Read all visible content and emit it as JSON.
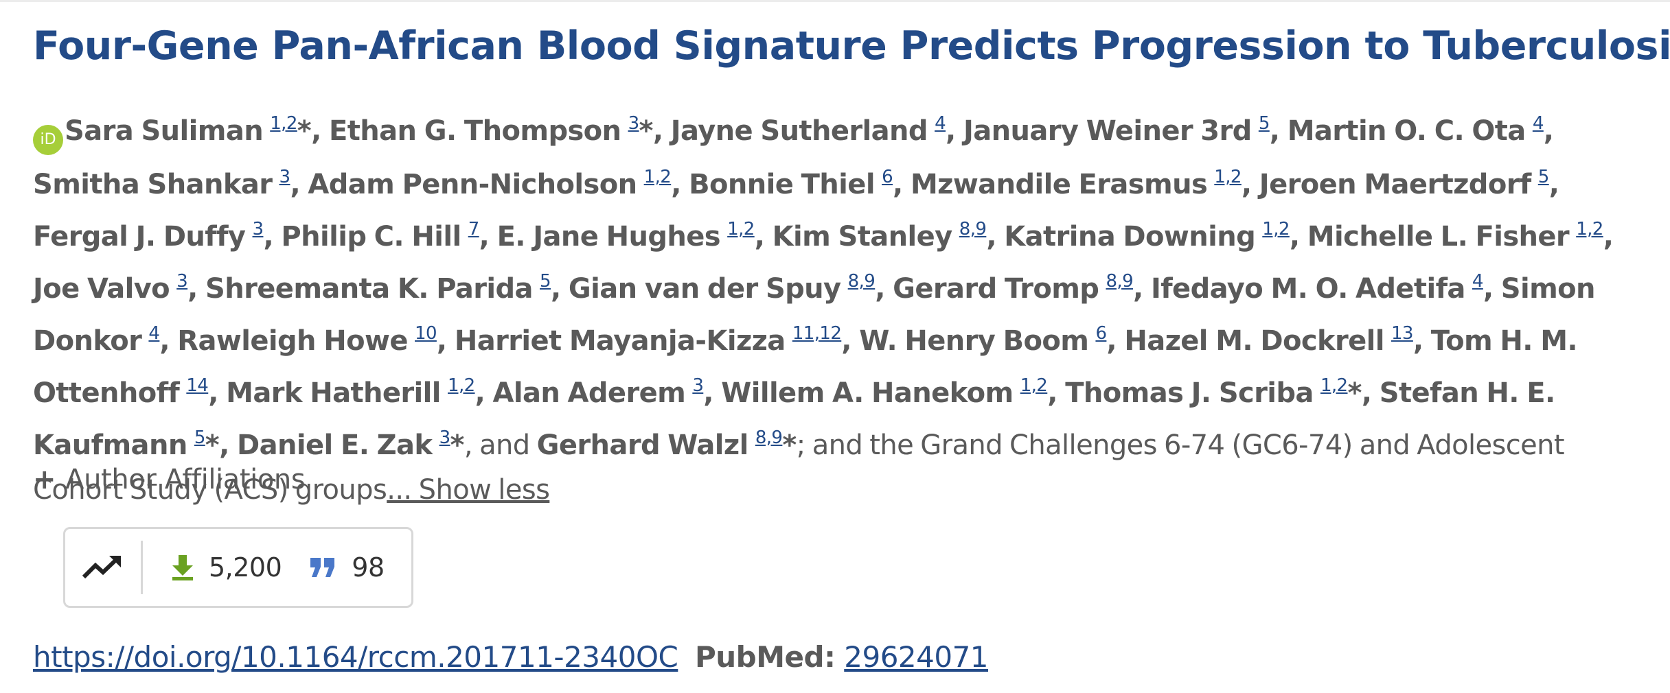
{
  "article": {
    "title": "Four-Gene Pan-African Blood Signature Predicts Progression to Tuberculosis"
  },
  "orcid": {
    "icon": "orcid-icon",
    "label": "iD",
    "color": "#a6ce39"
  },
  "authors": [
    {
      "name": "Sara Suliman",
      "aff": "1,2",
      "corresponding": true
    },
    {
      "name": "Ethan G. Thompson",
      "aff": "3",
      "corresponding": true
    },
    {
      "name": "Jayne Sutherland",
      "aff": "4",
      "corresponding": false
    },
    {
      "name": "January Weiner 3rd",
      "aff": "5",
      "corresponding": false
    },
    {
      "name": "Martin O. C. Ota",
      "aff": "4",
      "corresponding": false
    },
    {
      "name": "Smitha Shankar",
      "aff": "3",
      "corresponding": false
    },
    {
      "name": "Adam Penn-Nicholson",
      "aff": "1,2",
      "corresponding": false
    },
    {
      "name": "Bonnie Thiel",
      "aff": "6",
      "corresponding": false
    },
    {
      "name": "Mzwandile Erasmus",
      "aff": "1,2",
      "corresponding": false
    },
    {
      "name": "Jeroen Maertzdorf",
      "aff": "5",
      "corresponding": false
    },
    {
      "name": "Fergal J. Duffy",
      "aff": "3",
      "corresponding": false
    },
    {
      "name": "Philip C. Hill",
      "aff": "7",
      "corresponding": false
    },
    {
      "name": "E. Jane Hughes",
      "aff": "1,2",
      "corresponding": false
    },
    {
      "name": "Kim Stanley",
      "aff": "8,9",
      "corresponding": false
    },
    {
      "name": "Katrina Downing",
      "aff": "1,2",
      "corresponding": false
    },
    {
      "name": "Michelle L. Fisher",
      "aff": "1,2",
      "corresponding": false
    },
    {
      "name": "Joe Valvo",
      "aff": "3",
      "corresponding": false
    },
    {
      "name": "Shreemanta K. Parida",
      "aff": "5",
      "corresponding": false
    },
    {
      "name": "Gian van der Spuy",
      "aff": "8,9",
      "corresponding": false
    },
    {
      "name": "Gerard Tromp",
      "aff": "8,9",
      "corresponding": false
    },
    {
      "name": "Ifedayo M. O. Adetifa",
      "aff": "4",
      "corresponding": false
    },
    {
      "name": "Simon Donkor",
      "aff": "4",
      "corresponding": false
    },
    {
      "name": "Rawleigh Howe",
      "aff": "10",
      "corresponding": false
    },
    {
      "name": "Harriet Mayanja-Kizza",
      "aff": "11,12",
      "corresponding": false
    },
    {
      "name": "W. Henry Boom",
      "aff": "6",
      "corresponding": false
    },
    {
      "name": "Hazel M. Dockrell",
      "aff": "13",
      "corresponding": false
    },
    {
      "name": "Tom H. M. Ottenhoff",
      "aff": "14",
      "corresponding": false
    },
    {
      "name": "Mark Hatherill",
      "aff": "1,2",
      "corresponding": false
    },
    {
      "name": "Alan Aderem",
      "aff": "3",
      "corresponding": false
    },
    {
      "name": "Willem A. Hanekom",
      "aff": "1,2",
      "corresponding": false
    },
    {
      "name": "Thomas J. Scriba",
      "aff": "1,2",
      "corresponding": true
    },
    {
      "name": "Stefan H. E. Kaufmann",
      "aff": "5",
      "corresponding": true
    },
    {
      "name": "Daniel E. Zak",
      "aff": "3",
      "corresponding": true
    },
    {
      "name": "Gerhard Walzl",
      "aff": "8,9",
      "corresponding": true
    }
  ],
  "author_text": {
    "separator": ", ",
    "and_text": ", and ",
    "corresponding_mark": "*",
    "groups_text": "; and the Grand Challenges 6-74 (GC6-74) and Adolescent Cohort Study (ACS) groups",
    "show_less_label": "... Show less"
  },
  "affiliations": {
    "plus_icon": "plus-icon",
    "plus_symbol": "+",
    "label": "Author Affiliations"
  },
  "metrics": {
    "trend_icon": "trending-up-icon",
    "download_icon": "download-icon",
    "download_color": "#6aa121",
    "downloads": "5,200",
    "citation_icon": "quote-icon",
    "citation_color": "#4a78c9",
    "citations": "98"
  },
  "links": {
    "doi_url": "https://doi.org/10.1164/rccm.201711-2340OC",
    "pubmed_label": "PubMed:",
    "pubmed_id": "29624071"
  }
}
